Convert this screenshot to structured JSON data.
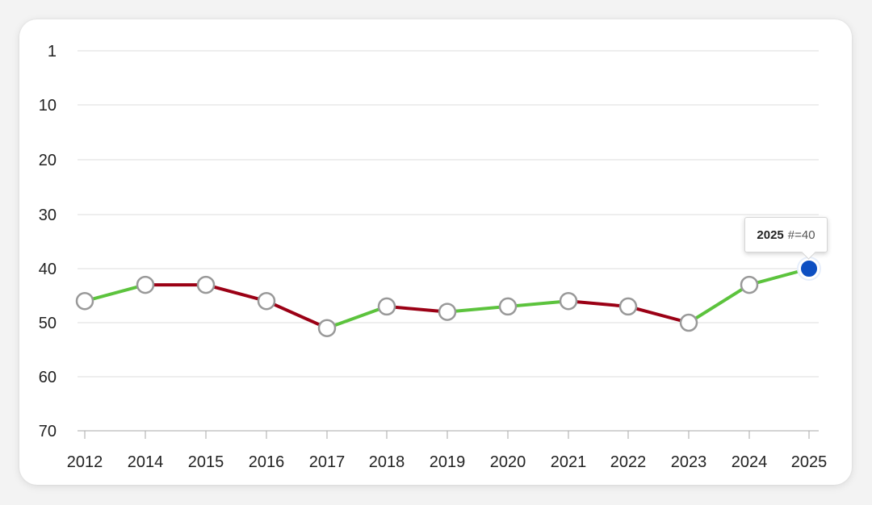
{
  "chart_data": {
    "type": "line",
    "categories": [
      "2012",
      "2014",
      "2015",
      "2016",
      "2017",
      "2018",
      "2019",
      "2020",
      "2021",
      "2022",
      "2023",
      "2024",
      "2025"
    ],
    "values": [
      46,
      43,
      43,
      46,
      51,
      47,
      48,
      47,
      46,
      47,
      50,
      43,
      40
    ],
    "y_ticks": [
      1,
      10,
      20,
      30,
      40,
      50,
      60,
      70
    ],
    "ylim": [
      70,
      1
    ],
    "y_inverted": true,
    "grid": true,
    "colors": {
      "up": "#5cc33d",
      "down": "#9b0015",
      "marker_fill": "#ffffff",
      "marker_stroke": "#999999",
      "highlight": "#0d4fc2",
      "grid": "#dddddd",
      "axis": "#aaaaaa"
    },
    "highlight_index": 12,
    "tooltip": {
      "year": "2025",
      "label": "#=40"
    }
  }
}
